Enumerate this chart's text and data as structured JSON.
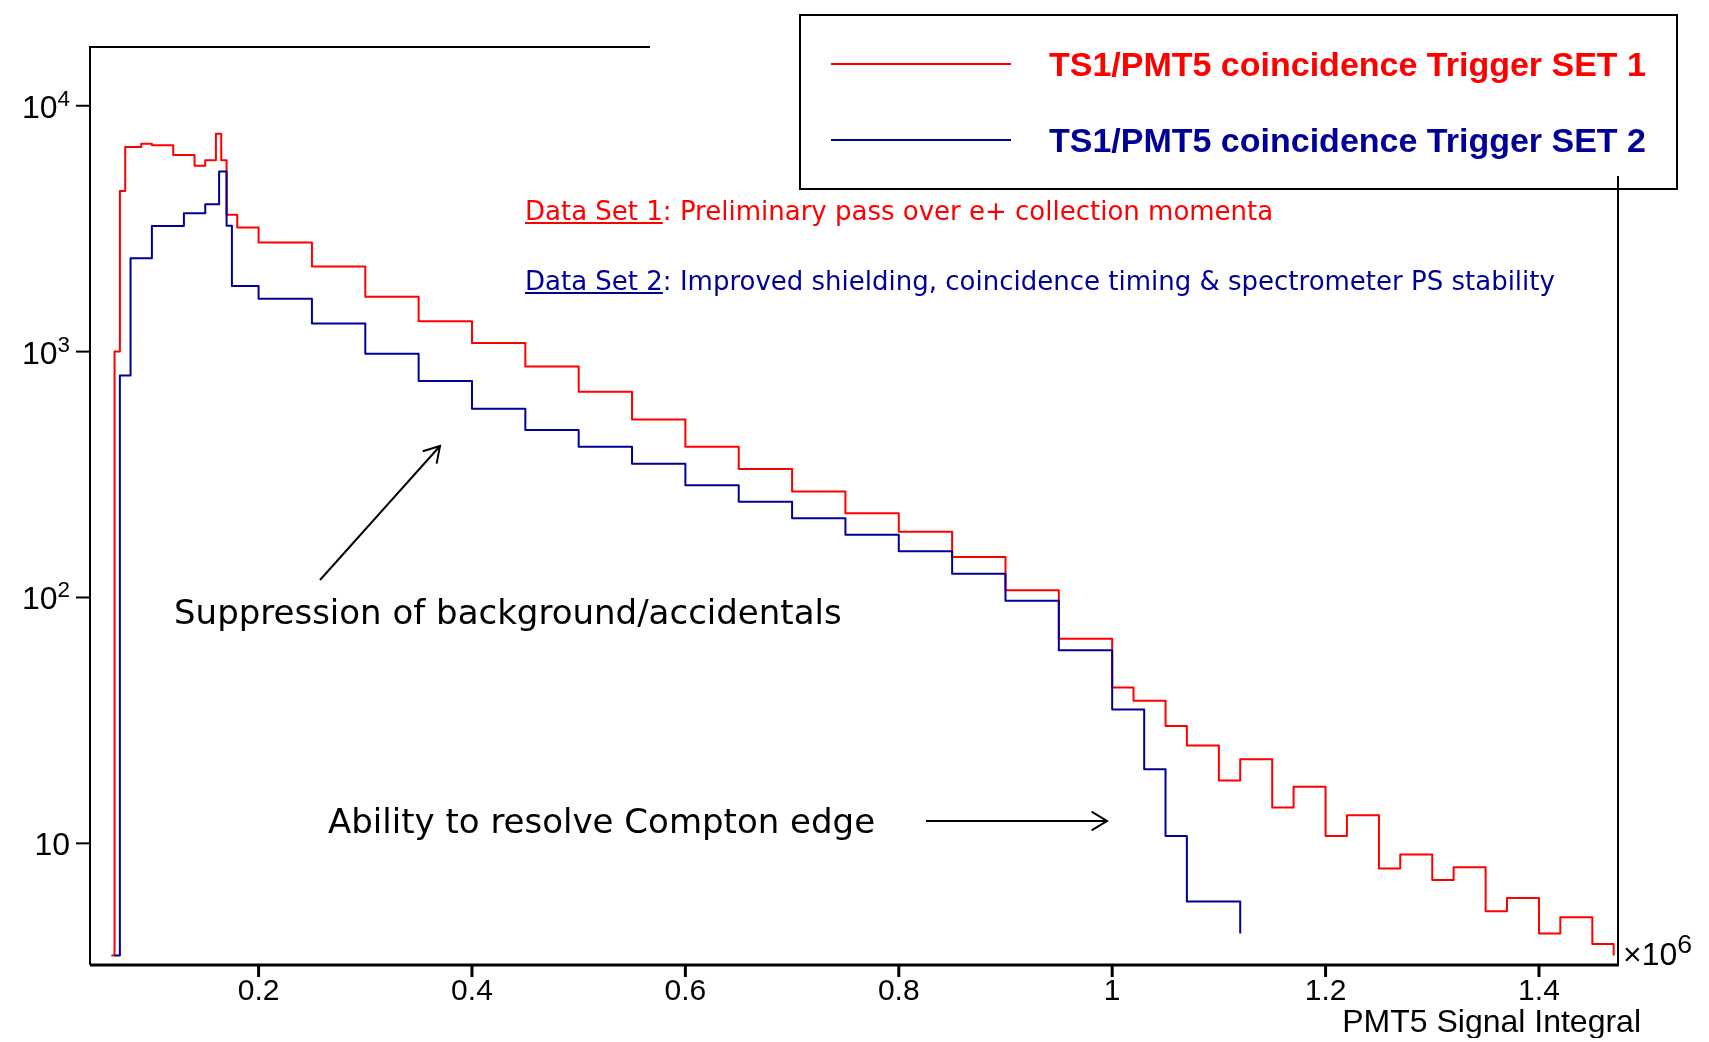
{
  "chart_data": {
    "type": "step",
    "xlabel": "PMT5 Signal Integral",
    "log": "y",
    "legend": "top right",
    "xlim": [
      0.042,
      1.475
    ],
    "xticks": [
      0.2,
      0.4,
      0.6,
      0.8,
      1,
      1.2,
      1.4
    ],
    "ylim": [
      3.2,
      17500
    ],
    "yticks": [
      10,
      {
        "value": 100,
        "label": "10$^{2}$"
      },
      {
        "value": 1000,
        "label": "10$^{3}$"
      },
      {
        "value": 10000,
        "label": "10$^{4}$"
      }
    ],
    "annotations": [
      "Data Set 1: Preliminary pass over e+ collection momenta",
      "Data Set 2: Improved shielding, coincidence timing & spectrometer PS stability",
      "Suppression of background/accidentals",
      "Ability to resolve Compton edge",
      "×10$^{6}$"
    ],
    "series": [
      {
        "name": "TS1/PMT5 coincidence Trigger SET 1",
        "color": "#ff0000",
        "x": [
          0.062,
          0.065,
          0.07,
          0.075,
          0.09,
          0.1,
          0.12,
          0.14,
          0.15,
          0.16,
          0.165,
          0.17,
          0.18,
          0.2,
          0.25,
          0.3,
          0.35,
          0.4,
          0.45,
          0.5,
          0.55,
          0.6,
          0.65,
          0.7,
          0.75,
          0.8,
          0.85,
          0.9,
          0.95,
          1.0,
          1.02,
          1.05,
          1.07,
          1.1,
          1.12,
          1.15,
          1.17,
          1.2,
          1.22,
          1.25,
          1.27,
          1.3,
          1.32,
          1.35,
          1.37,
          1.4,
          1.42,
          1.45,
          1.47
        ],
        "values": [
          3.5,
          1000,
          4500,
          6800,
          7000,
          6900,
          6300,
          5700,
          6000,
          7700,
          6000,
          3600,
          3200,
          2780,
          2220,
          1670,
          1330,
          1085,
          870,
          686,
          530,
          410,
          333,
          270,
          220,
          185,
          146,
          107,
          68,
          43,
          38,
          30,
          25,
          18,
          22,
          14,
          17,
          10.7,
          13,
          7.9,
          9,
          7.1,
          8,
          5.3,
          6,
          4.3,
          5,
          3.9,
          3.5
        ]
      },
      {
        "name": "TS1/PMT5 coincidence Trigger SET 2",
        "color": "#000099",
        "x": [
          0.065,
          0.07,
          0.08,
          0.1,
          0.13,
          0.15,
          0.163,
          0.17,
          0.175,
          0.2,
          0.25,
          0.3,
          0.35,
          0.4,
          0.45,
          0.5,
          0.55,
          0.6,
          0.65,
          0.7,
          0.75,
          0.8,
          0.85,
          0.9,
          0.95,
          1.0,
          1.03,
          1.05,
          1.07,
          1.1,
          1.12
        ],
        "values": [
          3.5,
          800,
          2400,
          3240,
          3650,
          3980,
          5400,
          3250,
          1850,
          1640,
          1300,
          980,
          760,
          585,
          480,
          410,
          350,
          286,
          245,
          210,
          180,
          154,
          125,
          97,
          61,
          35,
          20,
          10.7,
          5.8,
          5.8,
          4.3
        ]
      }
    ]
  }
}
